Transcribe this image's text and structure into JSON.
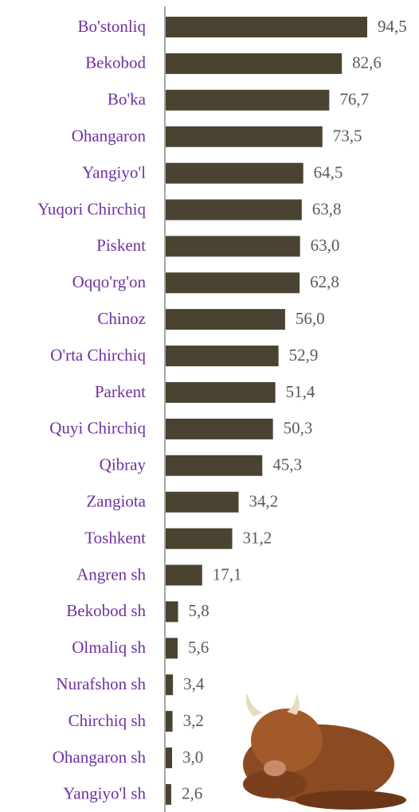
{
  "chart_data": {
    "type": "bar",
    "orientation": "horizontal",
    "categories": [
      "Bo'stonliq",
      "Bekobod",
      "Bo'ka",
      "Ohangaron",
      "Yangiyo'l",
      "Yuqori Chirchiq",
      "Piskent",
      "Oqqo'rg'on",
      "Chinoz",
      "O'rta Chirchiq",
      "Parkent",
      "Quyi Chirchiq",
      "Qibray",
      "Zangiota",
      "Toshkent",
      "Angren sh",
      "Bekobod sh",
      "Olmaliq sh",
      "Nurafshon sh",
      "Chirchiq sh",
      "Ohangaron sh",
      "Yangiyo'l sh"
    ],
    "values": [
      94.5,
      82.6,
      76.7,
      73.5,
      64.5,
      63.8,
      63.0,
      62.8,
      56.0,
      52.9,
      51.4,
      50.3,
      45.3,
      34.2,
      31.2,
      17.1,
      5.8,
      5.6,
      3.4,
      3.2,
      3.0,
      2.6
    ],
    "value_labels": [
      "94,5",
      "82,6",
      "76,7",
      "73,5",
      "64,5",
      "63,8",
      "63,0",
      "62,8",
      "56,0",
      "52,9",
      "51,4",
      "50,3",
      "45,3",
      "34,2",
      "31,2",
      "17,1",
      "5,8",
      "5,6",
      "3,4",
      "3,2",
      "3,0",
      "2,6"
    ],
    "color": "#4a4331"
  }
}
